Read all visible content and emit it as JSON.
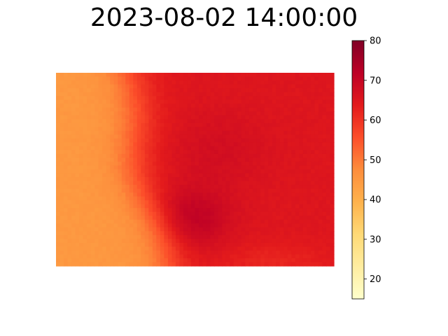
{
  "chart_data": {
    "type": "heatmap",
    "title": "2023-08-02 14:00:00",
    "colorbar": {
      "range": [
        15,
        80
      ],
      "ticks": [
        "20",
        "30",
        "40",
        "50",
        "60",
        "70",
        "80"
      ],
      "colormap": [
        "#ffffcc",
        "#ffeda0",
        "#fed976",
        "#feb24c",
        "#fd8d3c",
        "#fc4e2a",
        "#e31a1c",
        "#bd0026",
        "#800026"
      ]
    },
    "grid": false,
    "axes_visible": false,
    "field": {
      "description_values": "approximate temperature-like field; west low (~45), east high (~65-72), hotspot centered lower middle",
      "west_value": 45,
      "transition_value": 60,
      "east_value": 65,
      "hotspot_value": 72
    }
  }
}
